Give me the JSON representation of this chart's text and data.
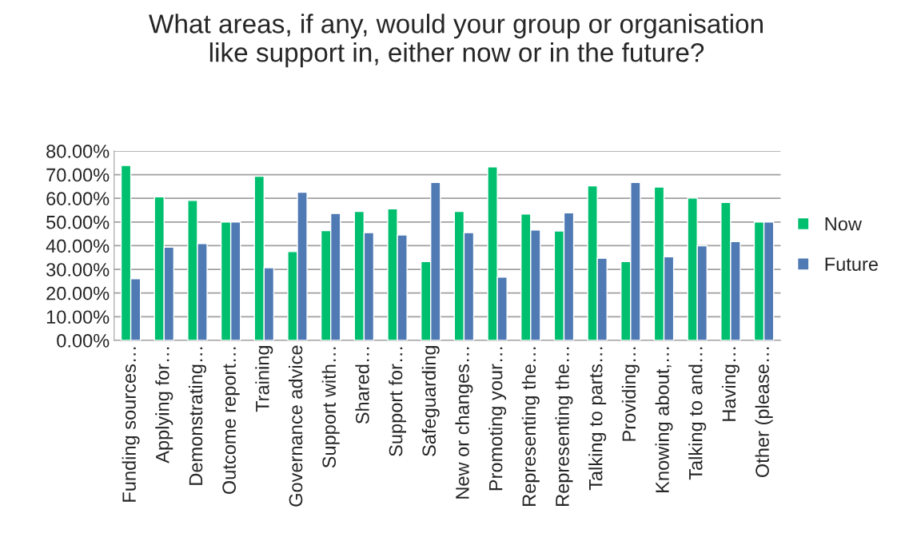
{
  "chart_data": {
    "type": "bar",
    "title": "What areas, if any, would your group or organisation\nlike support in, either now or in the future?",
    "categories": [
      "Funding sources…",
      "Applying for…",
      "Demonstrating…",
      "Outcome report…",
      "Training",
      "Governance advice",
      "Support with…",
      "Shared…",
      "Support for…",
      "Safeguarding",
      "New or changes…",
      "Promoting your…",
      "Representing the…",
      "Representing the…",
      "Talking to parts…",
      "Providing…",
      "Knowing about,…",
      "Talking to and…",
      "Having…",
      "Other (please…"
    ],
    "series": [
      {
        "name": "Now",
        "color": "#00bf6f",
        "values": [
          73.9,
          60.6,
          59.1,
          50.0,
          69.3,
          37.5,
          46.4,
          54.5,
          55.6,
          33.3,
          54.5,
          73.3,
          53.4,
          46.2,
          65.3,
          33.3,
          64.8,
          60.1,
          58.3,
          50.0
        ]
      },
      {
        "name": "Future",
        "color": "#4f7ab4",
        "values": [
          26.0,
          39.4,
          40.9,
          50.0,
          30.7,
          62.6,
          53.6,
          45.5,
          44.5,
          66.7,
          45.5,
          26.7,
          46.6,
          53.9,
          34.7,
          66.7,
          35.3,
          40.0,
          41.7,
          50.0
        ]
      }
    ],
    "ylim": [
      0,
      80
    ],
    "yticks": [
      {
        "value": 0,
        "label": "0.00%"
      },
      {
        "value": 10,
        "label": "10.00%"
      },
      {
        "value": 20,
        "label": "20.00%"
      },
      {
        "value": 30,
        "label": "30.00%"
      },
      {
        "value": 40,
        "label": "40.00%"
      },
      {
        "value": 50,
        "label": "50.00%"
      },
      {
        "value": 60,
        "label": "60.00%"
      },
      {
        "value": 70,
        "label": "70.00%"
      },
      {
        "value": 80,
        "label": "80.00%"
      }
    ],
    "grid": "y",
    "legend": "right"
  }
}
